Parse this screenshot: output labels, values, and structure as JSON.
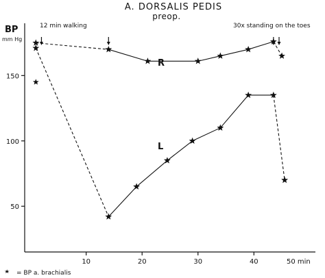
{
  "chart_data": {
    "type": "line",
    "title": "A. DORSALIS PEDIS",
    "subtitle": "preop.",
    "ylabel": "BP",
    "yunit": "mm Hg",
    "xunit_label": "50 min",
    "xlim": [
      -1,
      51
    ],
    "ylim": [
      15,
      190
    ],
    "yticks": [
      50,
      100,
      150
    ],
    "xticks": [
      10,
      20,
      30,
      40
    ],
    "annotations": {
      "walking": "12 min walking",
      "standing": "30x standing on the toes",
      "legend_note": "= BP a. brachialis"
    },
    "arrow_times": [
      2,
      14,
      43.5,
      44.5
    ],
    "series": [
      {
        "name": "R",
        "x": [
          1,
          14,
          21,
          30,
          34,
          39,
          43.5,
          45
        ],
        "y": [
          175,
          170,
          161,
          161,
          165,
          170,
          176,
          165
        ],
        "dashed_segments": [
          [
            0,
            1
          ],
          [
            6,
            7
          ]
        ]
      },
      {
        "name": "L",
        "x": [
          1,
          14,
          19,
          24.5,
          29,
          34,
          39,
          43.5,
          45.5
        ],
        "y": [
          171,
          42,
          65,
          85,
          100,
          110,
          135,
          135,
          70
        ],
        "dashed_segments": [
          [
            0,
            1
          ],
          [
            7,
            8
          ]
        ]
      }
    ],
    "brachial_points": [
      {
        "x": 1,
        "y": 145
      }
    ]
  }
}
